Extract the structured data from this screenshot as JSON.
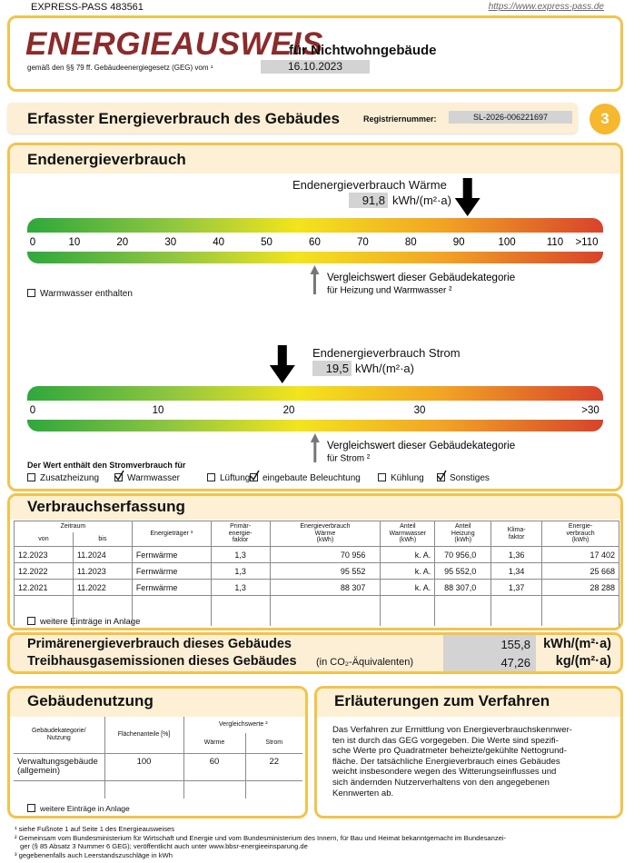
{
  "header": {
    "id": "EXPRESS-PASS 483561",
    "url": "https://www.express-pass.de"
  },
  "title": {
    "main": "ENERGIEAUSWEIS",
    "sub": "für Nichtwohngebäude",
    "law": "gemäß den §§ 79 ff. Gebäudeenergiegesetz (GEG) vom ¹",
    "date": "16.10.2023"
  },
  "section": {
    "title": "Erfasster Energieverbrauch des Gebäudes",
    "reg_label": "Registriernummer:",
    "reg": "SL-2026-006221697",
    "page": "3"
  },
  "endenergie": {
    "title": "Endenergieverbrauch",
    "heat": {
      "label": "Endenergieverbrauch Wärme",
      "value": "91,8",
      "unit": "kWh/(m²·a)",
      "scale": [
        "0",
        "10",
        "20",
        "30",
        "40",
        "50",
        "60",
        "70",
        "80",
        "90",
        "100",
        "110",
        ">110"
      ],
      "compare": [
        "Vergleichswert dieser Gebäudekategorie",
        "für Heizung und Warmwasser ²"
      ],
      "hot_water": {
        "label": "Warmwasser enthalten",
        "checked": false
      }
    },
    "power": {
      "label": "Endenergieverbrauch Strom",
      "value": "19,5",
      "unit": "kWh/(m²·a)",
      "scale": [
        "0",
        "10",
        "20",
        "30",
        ">30"
      ],
      "compare": [
        "Vergleichswert dieser Gebäudekategorie",
        "für Strom ²"
      ],
      "includes_label": "Der Wert enthält den Stromverbrauch für",
      "includes": [
        {
          "label": "Zusatzheizung",
          "checked": false
        },
        {
          "label": "Warmwasser",
          "checked": true
        },
        {
          "label": "Lüftung",
          "checked": false
        },
        {
          "label": "eingebaute Beleuchtung",
          "checked": true
        },
        {
          "label": "Kühlung",
          "checked": false
        },
        {
          "label": "Sonstiges",
          "checked": true
        }
      ]
    }
  },
  "verbrauch": {
    "title": "Verbrauchserfassung",
    "header": {
      "period": "Zeitraum",
      "from": "von",
      "to": "bis",
      "cols": [
        "Energieträger ³",
        "Primär-\nenergie-\nfaktor",
        "Energieverbrauch\nWärme\n(kWh)",
        "Anteil\nWarmwasser\n(kWh)",
        "Anteil\nHeizung\n(kWh)",
        "Klima-\nfaktor",
        "Energie-\nverbrauch\n(kWh)"
      ]
    },
    "rows": [
      [
        "12.2023",
        "11.2024",
        "Fernwärme",
        "1,3",
        "70 956",
        "k. A.",
        "70 956,0",
        "1,36",
        "17 402"
      ],
      [
        "12.2022",
        "11.2023",
        "Fernwärme",
        "1,3",
        "95 552",
        "k. A.",
        "95 552,0",
        "1,34",
        "25 668"
      ],
      [
        "12.2021",
        "11.2022",
        "Fernwärme",
        "1,3",
        "88 307",
        "k. A.",
        "88 307,0",
        "1,37",
        "28 288"
      ]
    ],
    "more": {
      "label": "weitere Einträge in Anlage",
      "checked": false
    }
  },
  "primary": {
    "label": "Primärenergieverbrauch dieses Gebäudes",
    "value": "155,8",
    "unit": "kWh/(m²·a)"
  },
  "emissions": {
    "label": "Treibhausgasemissionen dieses Gebäudes",
    "note": "(in CO₂-Äquivalenten)",
    "value": "47,26",
    "unit": "kg/(m²·a)"
  },
  "nutzung": {
    "title": "Gebäudenutzung",
    "header": {
      "category": "Gebäudekategorie/\nNutzung",
      "share": "Flächenanteile [%]",
      "compare": "Vergleichswerte ²",
      "heat": "Wärme",
      "power": "Strom"
    },
    "rows": [
      [
        "Verwaltungsgebäude\n(allgemein)",
        "100",
        "60",
        "22"
      ]
    ],
    "more": {
      "label": "weitere Einträge in Anlage",
      "checked": false
    }
  },
  "explanation": {
    "title": "Erläuterungen zum Verfahren",
    "lines": [
      "Das Verfahren zur Ermittlung von Energieverbrauchskennwer-",
      "ten ist durch das GEG vorgegeben. Die Werte sind spezifi-",
      "sche Werte pro Quadratmeter beheizte/gekühlte Nettogrund-",
      "fläche. Der tatsächliche Energieverbrauch eines Gebäudes",
      "weicht insbesondere wegen des Witterungseinflusses und",
      "sich ändernden Nutzerverhaltens von den angegebenen",
      "Kennwerten ab."
    ]
  },
  "footnotes": [
    "¹ siehe Fußnote 1 auf Seite 1 des Energieausweises",
    "² Gemeinsam vom Bundesministerium für Wirtschaft und Energie und vom Bundesministerium des Innern, für Bau und Heimat bekanntgemacht im Bundesanzei-",
    "ger (§ 85 Absatz 3 Nummer 6 GEG); veröffentlicht auch unter www.bbsr-energieeinsparung.de",
    "³ gegebenenfalls auch Leerstandszuschläge in kWh"
  ]
}
